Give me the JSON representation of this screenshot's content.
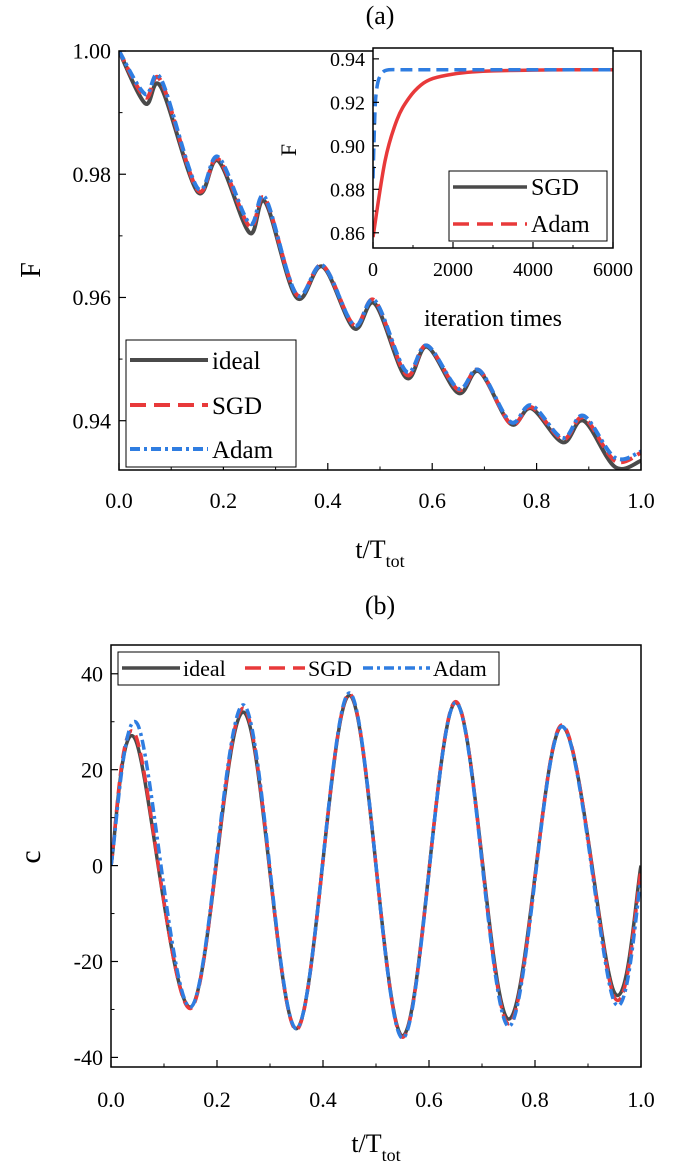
{
  "colors": {
    "ideal": "#4a4a4a",
    "sgd": "#e8393a",
    "adam": "#2f7de1",
    "axis": "#000000"
  },
  "chart_data": [
    {
      "panel_label": "(a)",
      "type": "line",
      "xlabel": "t/T",
      "xlabel_sub": "tot",
      "ylabel": "F",
      "xlim": [
        0,
        1
      ],
      "ylim": [
        0.932,
        1.0
      ],
      "xticks": [
        0,
        0.2,
        0.4,
        0.6,
        0.8,
        1.0
      ],
      "xtick_labels": [
        "0.0",
        "0.2",
        "0.4",
        "0.6",
        "0.8",
        "1.0"
      ],
      "yticks": [
        0.94,
        0.96,
        0.98,
        1.0
      ],
      "ytick_labels": [
        "0.94",
        "0.96",
        "0.98",
        "1.00"
      ],
      "legend": [
        "ideal",
        "SGD",
        "Adam"
      ],
      "legend_position": "bottom-left",
      "series": [
        {
          "name": "ideal",
          "style": "solid",
          "x": [
            0.0,
            0.05,
            0.08,
            0.15,
            0.19,
            0.25,
            0.28,
            0.34,
            0.39,
            0.45,
            0.49,
            0.55,
            0.59,
            0.65,
            0.69,
            0.75,
            0.79,
            0.85,
            0.89,
            0.95,
            1.0
          ],
          "y": [
            1.0,
            0.9915,
            0.9942,
            0.9772,
            0.9822,
            0.9705,
            0.9755,
            0.96,
            0.965,
            0.955,
            0.959,
            0.947,
            0.952,
            0.9445,
            0.948,
            0.9395,
            0.942,
            0.9365,
            0.94,
            0.9325,
            0.9335
          ]
        },
        {
          "name": "SGD",
          "style": "dashed",
          "x": [
            0.0,
            0.05,
            0.08,
            0.15,
            0.19,
            0.25,
            0.28,
            0.34,
            0.39,
            0.45,
            0.49,
            0.55,
            0.59,
            0.65,
            0.69,
            0.75,
            0.79,
            0.85,
            0.89,
            0.95,
            1.0
          ],
          "y": [
            1.0,
            0.9925,
            0.9952,
            0.9775,
            0.9825,
            0.9715,
            0.976,
            0.9605,
            0.9652,
            0.9555,
            0.9595,
            0.9475,
            0.9522,
            0.945,
            0.9482,
            0.9395,
            0.9422,
            0.937,
            0.9405,
            0.9335,
            0.9348
          ]
        },
        {
          "name": "Adam",
          "style": "dashdot",
          "x": [
            0.0,
            0.05,
            0.08,
            0.15,
            0.19,
            0.25,
            0.28,
            0.34,
            0.39,
            0.45,
            0.49,
            0.55,
            0.59,
            0.65,
            0.69,
            0.75,
            0.79,
            0.85,
            0.89,
            0.95,
            1.0
          ],
          "y": [
            1.0,
            0.993,
            0.9955,
            0.9778,
            0.9828,
            0.972,
            0.9762,
            0.9605,
            0.9652,
            0.9555,
            0.9595,
            0.948,
            0.9522,
            0.9452,
            0.9482,
            0.9398,
            0.9425,
            0.9372,
            0.9408,
            0.934,
            0.935
          ]
        }
      ],
      "inset": {
        "type": "line",
        "xlabel": "iteration times",
        "ylabel": "F",
        "xlim": [
          0,
          6000
        ],
        "ylim": [
          0.853,
          0.945
        ],
        "xticks": [
          0,
          2000,
          4000,
          6000
        ],
        "xtick_labels": [
          "0",
          "2000",
          "4000",
          "6000"
        ],
        "yticks": [
          0.86,
          0.88,
          0.9,
          0.92,
          0.94
        ],
        "ytick_labels": [
          "0.86",
          "0.88",
          "0.90",
          "0.92",
          "0.94"
        ],
        "legend": [
          "SGD",
          "Adam"
        ],
        "legend_position": "bottom-right",
        "series": [
          {
            "name": "SGD",
            "style": "solid",
            "x": [
              0,
              300,
              600,
              900,
              1200,
              1500,
              2000,
              2500,
              3000,
              4000,
              5000,
              6000
            ],
            "y": [
              0.858,
              0.893,
              0.912,
              0.922,
              0.928,
              0.931,
              0.933,
              0.934,
              0.9345,
              0.9348,
              0.935,
              0.935
            ]
          },
          {
            "name": "Adam",
            "style": "dashed",
            "x": [
              0,
              30,
              60,
              100,
              150,
              250,
              400,
              700,
              1000,
              2000,
              4000,
              6000
            ],
            "y": [
              0.885,
              0.905,
              0.92,
              0.927,
              0.931,
              0.934,
              0.935,
              0.935,
              0.935,
              0.935,
              0.935,
              0.935
            ]
          }
        ]
      }
    },
    {
      "panel_label": "(b)",
      "type": "line",
      "xlabel": "t/T",
      "xlabel_sub": "tot",
      "ylabel": "c",
      "xlim": [
        0,
        1
      ],
      "ylim": [
        -42,
        46
      ],
      "xticks": [
        0,
        0.2,
        0.4,
        0.6,
        0.8,
        1.0
      ],
      "xtick_labels": [
        "0.0",
        "0.2",
        "0.4",
        "0.6",
        "0.8",
        "1.0"
      ],
      "yticks": [
        -40,
        -20,
        0,
        20,
        40
      ],
      "ytick_labels": [
        "-40",
        "-20",
        "0",
        "20",
        "40"
      ],
      "legend": [
        "ideal",
        "SGD",
        "Adam"
      ],
      "legend_position": "top-left",
      "series": [
        {
          "name": "ideal",
          "style": "solid",
          "x": [
            0.0,
            0.045,
            0.15,
            0.25,
            0.35,
            0.45,
            0.55,
            0.65,
            0.75,
            0.85,
            0.95,
            1.0
          ],
          "y": [
            0,
            26.5,
            -29.5,
            32,
            -34,
            35.5,
            -35.5,
            34,
            -32,
            29,
            -26.5,
            0
          ]
        },
        {
          "name": "SGD",
          "style": "dashed",
          "x": [
            0.0,
            0.045,
            0.15,
            0.25,
            0.35,
            0.45,
            0.55,
            0.65,
            0.75,
            0.85,
            0.95,
            1.0
          ],
          "y": [
            0,
            27.5,
            -29.8,
            32.8,
            -34.2,
            35.8,
            -35.8,
            34.2,
            -33,
            29.3,
            -27.5,
            -1
          ]
        },
        {
          "name": "Adam",
          "style": "dashdot",
          "x": [
            0.0,
            0.05,
            0.15,
            0.25,
            0.35,
            0.45,
            0.55,
            0.65,
            0.75,
            0.85,
            0.95,
            1.0
          ],
          "y": [
            0,
            29.5,
            -29.5,
            33.5,
            -34,
            36,
            -36,
            34,
            -33.5,
            29,
            -28.5,
            -3
          ]
        }
      ]
    }
  ]
}
